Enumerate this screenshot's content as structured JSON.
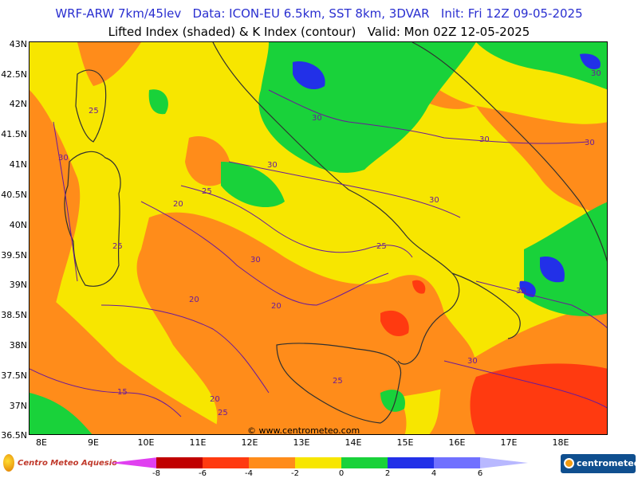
{
  "header": {
    "title_line1": "WRF-ARW 7km/45lev   Data: ICON-EU 6.5km, SST 8km, 3DVAR   Init: Fri 12Z 09-05-2025",
    "title_line2": "Lifted Index (shaded) & K Index (contour)   Valid: Mon 02Z 12-05-2025"
  },
  "map": {
    "lat_labels": [
      "43N",
      "42.5N",
      "42N",
      "41.5N",
      "41N",
      "40.5N",
      "40N",
      "39.5N",
      "39N",
      "38.5N",
      "38N",
      "37.5N",
      "37N",
      "36.5N"
    ],
    "lon_labels": [
      "8E",
      "9E",
      "10E",
      "11E",
      "12E",
      "13E",
      "14E",
      "15E",
      "16E",
      "17E",
      "18E"
    ],
    "contour_labels": [
      "25",
      "30",
      "30",
      "30",
      "30",
      "30",
      "25",
      "20",
      "30",
      "25",
      "25",
      "30",
      "30",
      "30",
      "20",
      "20",
      "25",
      "30",
      "15",
      "20",
      "25"
    ],
    "watermark": "© www.centrometeo.com",
    "colors": {
      "violet_le_minus8": "#e040f0",
      "darkred": "#c00000",
      "red": "#ff3a10",
      "orange": "#ff8c1a",
      "yellow": "#f7e600",
      "green": "#19d23a",
      "blue": "#2230e8",
      "lightblue": "#7070ff",
      "lavender": "#b8b8ff",
      "contour": "#6a1a9a",
      "coast": "#303030"
    }
  },
  "legend": {
    "scale_labels": [
      "-8",
      "-6",
      "-4",
      "-2",
      "0",
      "2",
      "4",
      "6"
    ]
  },
  "logos": {
    "left": "Centro Meteo Aquesio",
    "right": "centrometeo"
  }
}
